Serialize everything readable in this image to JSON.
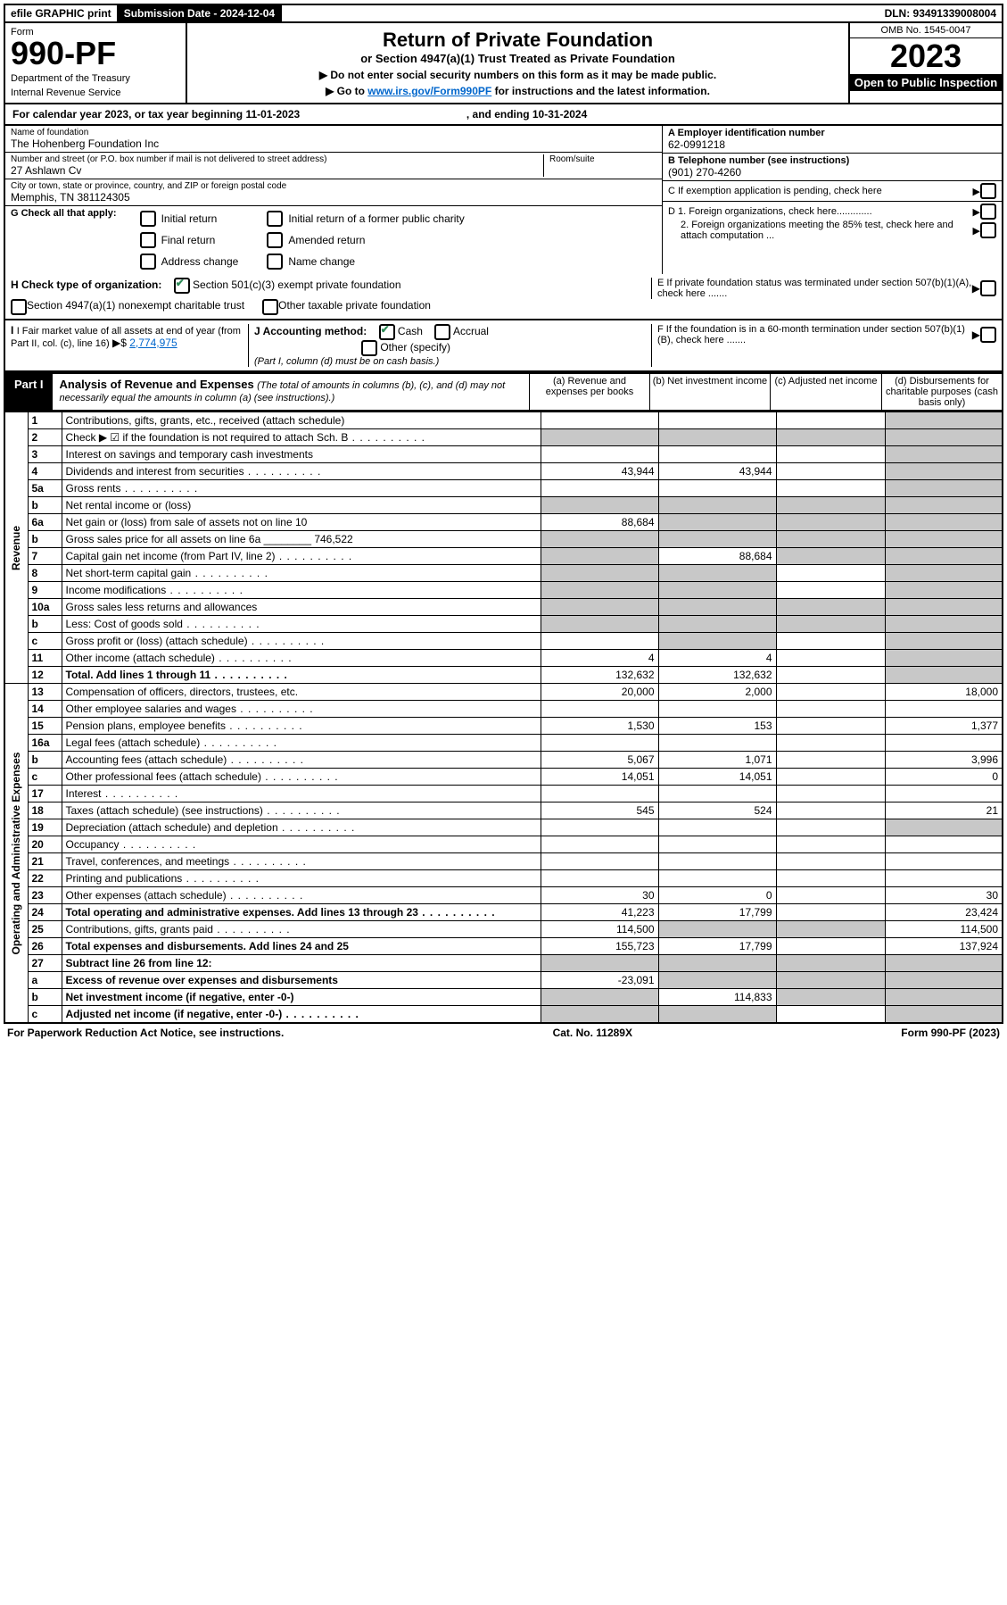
{
  "top_bar": {
    "efile": "efile GRAPHIC print",
    "submission_label": "Submission Date - 2024-12-04",
    "dln": "DLN: 93491339008004"
  },
  "header": {
    "form_label": "Form",
    "form_no": "990-PF",
    "dept": "Department of the Treasury",
    "irs": "Internal Revenue Service",
    "title": "Return of Private Foundation",
    "subtitle": "or Section 4947(a)(1) Trust Treated as Private Foundation",
    "instr1": "▶ Do not enter social security numbers on this form as it may be made public.",
    "instr2_pre": "▶ Go to ",
    "instr2_link": "www.irs.gov/Form990PF",
    "instr2_post": " for instructions and the latest information.",
    "omb": "OMB No. 1545-0047",
    "year": "2023",
    "open_public": "Open to Public Inspection"
  },
  "cal_year": {
    "text_pre": "For calendar year 2023, or tax year beginning ",
    "begin": "11-01-2023",
    "text_mid": " , and ending ",
    "end": "10-31-2024"
  },
  "entity": {
    "name_label": "Name of foundation",
    "name": "The Hohenberg Foundation Inc",
    "addr_label": "Number and street (or P.O. box number if mail is not delivered to street address)",
    "addr": "27 Ashlawn Cv",
    "room_label": "Room/suite",
    "city_label": "City or town, state or province, country, and ZIP or foreign postal code",
    "city": "Memphis, TN  381124305",
    "A_label": "A Employer identification number",
    "A_val": "62-0991218",
    "B_label": "B Telephone number (see instructions)",
    "B_val": "(901) 270-4260",
    "C_label": "C If exemption application is pending, check here",
    "D1": "D 1. Foreign organizations, check here.............",
    "D2": "2. Foreign organizations meeting the 85% test, check here and attach computation ...",
    "E": "E  If private foundation status was terminated under section 507(b)(1)(A), check here .......",
    "F": "F  If the foundation is in a 60-month termination under section 507(b)(1)(B), check here .......",
    "G_label": "G Check all that apply:",
    "G_opts": [
      "Initial return",
      "Final return",
      "Address change",
      "Initial return of a former public charity",
      "Amended return",
      "Name change"
    ],
    "H_label": "H Check type of organization:",
    "H_opt1": "Section 501(c)(3) exempt private foundation",
    "H_opt2": "Section 4947(a)(1) nonexempt charitable trust",
    "H_opt3": "Other taxable private foundation",
    "I_label": "I Fair market value of all assets at end of year (from Part II, col. (c), line 16)",
    "I_val": "2,774,975",
    "J_label": "J Accounting method:",
    "J_cash": "Cash",
    "J_accrual": "Accrual",
    "J_other": "Other (specify)",
    "J_note": "(Part I, column (d) must be on cash basis.)"
  },
  "part1": {
    "label": "Part I",
    "title": "Analysis of Revenue and Expenses",
    "title_note": "(The total of amounts in columns (b), (c), and (d) may not necessarily equal the amounts in column (a) (see instructions).)",
    "col_a": "(a)  Revenue and expenses per books",
    "col_b": "(b)  Net investment income",
    "col_c": "(c)  Adjusted net income",
    "col_d": "(d)  Disbursements for charitable purposes (cash basis only)"
  },
  "side_labels": {
    "revenue": "Revenue",
    "expenses": "Operating and Administrative Expenses"
  },
  "rows": [
    {
      "n": "1",
      "d": "Contributions, gifts, grants, etc., received (attach schedule)",
      "a": "",
      "b": "",
      "c": "",
      "dd": "",
      "shade_d": true
    },
    {
      "n": "2",
      "d": "Check ▶ ☑ if the foundation is not required to attach Sch. B",
      "dots": true,
      "a": "",
      "b": "",
      "c": "",
      "dd": "",
      "shade_a": true,
      "shade_b": true,
      "shade_c": true,
      "shade_d": true
    },
    {
      "n": "3",
      "d": "Interest on savings and temporary cash investments",
      "a": "",
      "b": "",
      "c": "",
      "dd": "",
      "shade_d": true
    },
    {
      "n": "4",
      "d": "Dividends and interest from securities",
      "dots": true,
      "a": "43,944",
      "b": "43,944",
      "c": "",
      "dd": "",
      "shade_d": true
    },
    {
      "n": "5a",
      "d": "Gross rents",
      "dots": true,
      "a": "",
      "b": "",
      "c": "",
      "dd": "",
      "shade_d": true
    },
    {
      "n": "b",
      "d": "Net rental income or (loss)",
      "a": "",
      "b": "",
      "c": "",
      "dd": "",
      "shade_a": true,
      "shade_b": true,
      "shade_c": true,
      "shade_d": true
    },
    {
      "n": "6a",
      "d": "Net gain or (loss) from sale of assets not on line 10",
      "a": "88,684",
      "b": "",
      "c": "",
      "dd": "",
      "shade_b": true,
      "shade_c": true,
      "shade_d": true
    },
    {
      "n": "b",
      "d": "Gross sales price for all assets on line 6a ________ 746,522",
      "a": "",
      "b": "",
      "c": "",
      "dd": "",
      "shade_a": true,
      "shade_b": true,
      "shade_c": true,
      "shade_d": true
    },
    {
      "n": "7",
      "d": "Capital gain net income (from Part IV, line 2)",
      "dots": true,
      "a": "",
      "b": "88,684",
      "c": "",
      "dd": "",
      "shade_a": true,
      "shade_c": true,
      "shade_d": true
    },
    {
      "n": "8",
      "d": "Net short-term capital gain",
      "dots": true,
      "a": "",
      "b": "",
      "c": "",
      "dd": "",
      "shade_a": true,
      "shade_b": true,
      "shade_d": true
    },
    {
      "n": "9",
      "d": "Income modifications",
      "dots": true,
      "a": "",
      "b": "",
      "c": "",
      "dd": "",
      "shade_a": true,
      "shade_b": true,
      "shade_d": true
    },
    {
      "n": "10a",
      "d": "Gross sales less returns and allowances",
      "a": "",
      "b": "",
      "c": "",
      "dd": "",
      "shade_a": true,
      "shade_b": true,
      "shade_c": true,
      "shade_d": true
    },
    {
      "n": "b",
      "d": "Less: Cost of goods sold",
      "dots": true,
      "a": "",
      "b": "",
      "c": "",
      "dd": "",
      "shade_a": true,
      "shade_b": true,
      "shade_c": true,
      "shade_d": true
    },
    {
      "n": "c",
      "d": "Gross profit or (loss) (attach schedule)",
      "dots": true,
      "a": "",
      "b": "",
      "c": "",
      "dd": "",
      "shade_b": true,
      "shade_d": true
    },
    {
      "n": "11",
      "d": "Other income (attach schedule)",
      "dots": true,
      "a": "4",
      "b": "4",
      "c": "",
      "dd": "",
      "shade_d": true
    },
    {
      "n": "12",
      "d": "Total. Add lines 1 through 11",
      "dots": true,
      "bold": true,
      "a": "132,632",
      "b": "132,632",
      "c": "",
      "dd": "",
      "shade_d": true
    },
    {
      "n": "13",
      "d": "Compensation of officers, directors, trustees, etc.",
      "a": "20,000",
      "b": "2,000",
      "c": "",
      "dd": "18,000"
    },
    {
      "n": "14",
      "d": "Other employee salaries and wages",
      "dots": true,
      "a": "",
      "b": "",
      "c": "",
      "dd": ""
    },
    {
      "n": "15",
      "d": "Pension plans, employee benefits",
      "dots": true,
      "a": "1,530",
      "b": "153",
      "c": "",
      "dd": "1,377"
    },
    {
      "n": "16a",
      "d": "Legal fees (attach schedule)",
      "dots": true,
      "a": "",
      "b": "",
      "c": "",
      "dd": ""
    },
    {
      "n": "b",
      "d": "Accounting fees (attach schedule)",
      "dots": true,
      "a": "5,067",
      "b": "1,071",
      "c": "",
      "dd": "3,996"
    },
    {
      "n": "c",
      "d": "Other professional fees (attach schedule)",
      "dots": true,
      "a": "14,051",
      "b": "14,051",
      "c": "",
      "dd": "0"
    },
    {
      "n": "17",
      "d": "Interest",
      "dots": true,
      "a": "",
      "b": "",
      "c": "",
      "dd": ""
    },
    {
      "n": "18",
      "d": "Taxes (attach schedule) (see instructions)",
      "dots": true,
      "a": "545",
      "b": "524",
      "c": "",
      "dd": "21"
    },
    {
      "n": "19",
      "d": "Depreciation (attach schedule) and depletion",
      "dots": true,
      "a": "",
      "b": "",
      "c": "",
      "dd": "",
      "shade_d": true
    },
    {
      "n": "20",
      "d": "Occupancy",
      "dots": true,
      "a": "",
      "b": "",
      "c": "",
      "dd": ""
    },
    {
      "n": "21",
      "d": "Travel, conferences, and meetings",
      "dots": true,
      "a": "",
      "b": "",
      "c": "",
      "dd": ""
    },
    {
      "n": "22",
      "d": "Printing and publications",
      "dots": true,
      "a": "",
      "b": "",
      "c": "",
      "dd": ""
    },
    {
      "n": "23",
      "d": "Other expenses (attach schedule)",
      "dots": true,
      "a": "30",
      "b": "0",
      "c": "",
      "dd": "30"
    },
    {
      "n": "24",
      "d": "Total operating and administrative expenses. Add lines 13 through 23",
      "dots": true,
      "bold": true,
      "a": "41,223",
      "b": "17,799",
      "c": "",
      "dd": "23,424"
    },
    {
      "n": "25",
      "d": "Contributions, gifts, grants paid",
      "dots": true,
      "a": "114,500",
      "b": "",
      "c": "",
      "dd": "114,500",
      "shade_b": true,
      "shade_c": true
    },
    {
      "n": "26",
      "d": "Total expenses and disbursements. Add lines 24 and 25",
      "bold": true,
      "a": "155,723",
      "b": "17,799",
      "c": "",
      "dd": "137,924"
    },
    {
      "n": "27",
      "d": "Subtract line 26 from line 12:",
      "bold": true,
      "a": "",
      "b": "",
      "c": "",
      "dd": "",
      "shade_a": true,
      "shade_b": true,
      "shade_c": true,
      "shade_d": true
    },
    {
      "n": "a",
      "d": "Excess of revenue over expenses and disbursements",
      "bold": true,
      "a": "-23,091",
      "b": "",
      "c": "",
      "dd": "",
      "shade_b": true,
      "shade_c": true,
      "shade_d": true
    },
    {
      "n": "b",
      "d": "Net investment income (if negative, enter -0-)",
      "bold": true,
      "a": "",
      "b": "114,833",
      "c": "",
      "dd": "",
      "shade_a": true,
      "shade_c": true,
      "shade_d": true
    },
    {
      "n": "c",
      "d": "Adjusted net income (if negative, enter -0-)",
      "dots": true,
      "bold": true,
      "a": "",
      "b": "",
      "c": "",
      "dd": "",
      "shade_a": true,
      "shade_b": true,
      "shade_d": true
    }
  ],
  "footer": {
    "left": "For Paperwork Reduction Act Notice, see instructions.",
    "center": "Cat. No. 11289X",
    "right": "Form 990-PF (2023)"
  }
}
